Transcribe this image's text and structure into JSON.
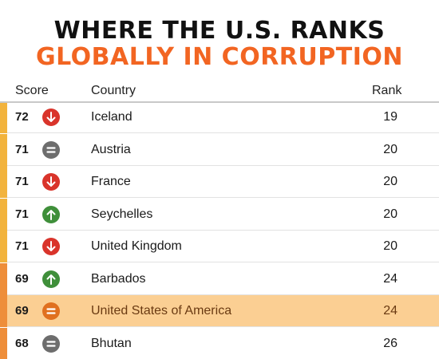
{
  "title": {
    "line1": "WHERE THE U.S. RANKS",
    "line2": "GLOBALLY IN CORRUPTION"
  },
  "columns": {
    "score": "Score",
    "country": "Country",
    "rank": "Rank"
  },
  "colors": {
    "accent_orange": "#f26522",
    "highlight_row": "#fbcf93",
    "down_icon": "#d9342b",
    "up_icon": "#3f8f3a",
    "same_icon": "#6d6d6d",
    "same_icon_highlight": "#e0701f"
  },
  "rows": [
    {
      "score": "72",
      "change": "down",
      "icon": "arrow-down-icon",
      "country": "Iceland",
      "rank": "19",
      "accent": "#f2b33d",
      "highlight": false
    },
    {
      "score": "71",
      "change": "same",
      "icon": "equals-icon",
      "country": "Austria",
      "rank": "20",
      "accent": "#f2b33d",
      "highlight": false
    },
    {
      "score": "71",
      "change": "down",
      "icon": "arrow-down-icon",
      "country": "France",
      "rank": "20",
      "accent": "#f2b33d",
      "highlight": false
    },
    {
      "score": "71",
      "change": "up",
      "icon": "arrow-up-icon",
      "country": "Seychelles",
      "rank": "20",
      "accent": "#f2b33d",
      "highlight": false
    },
    {
      "score": "71",
      "change": "down",
      "icon": "arrow-down-icon",
      "country": "United Kingdom",
      "rank": "20",
      "accent": "#f2b33d",
      "highlight": false
    },
    {
      "score": "69",
      "change": "up",
      "icon": "arrow-up-icon",
      "country": "Barbados",
      "rank": "24",
      "accent": "#ee8e3a",
      "highlight": false
    },
    {
      "score": "69",
      "change": "same",
      "icon": "equals-icon",
      "country": "United States of America",
      "rank": "24",
      "accent": "#ee8e3a",
      "highlight": true
    },
    {
      "score": "68",
      "change": "same",
      "icon": "equals-icon",
      "country": "Bhutan",
      "rank": "26",
      "accent": "#ee8e3a",
      "highlight": false
    }
  ]
}
